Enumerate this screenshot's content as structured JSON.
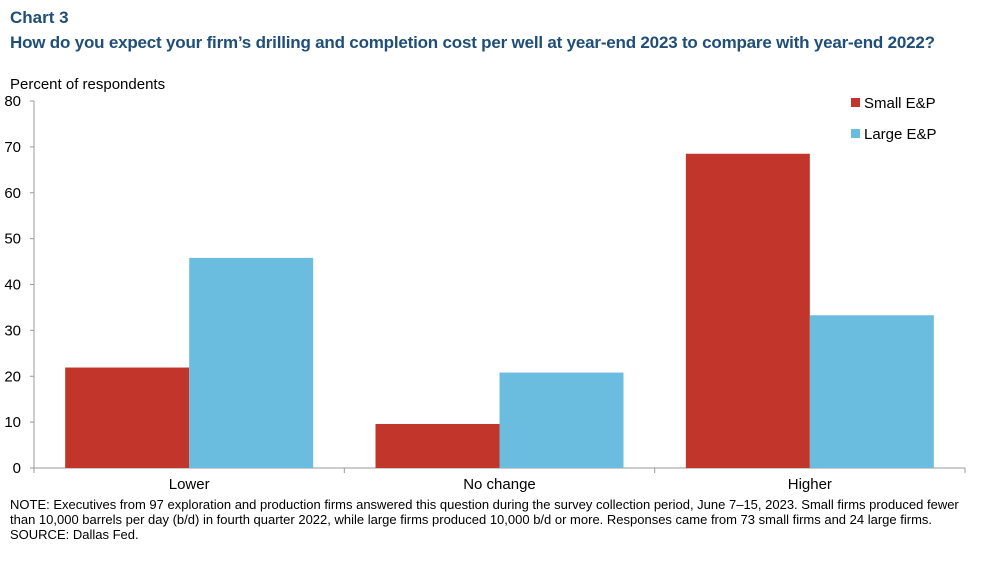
{
  "header": {
    "chart_number": "Chart 3",
    "title": "How do you expect your firm’s drilling and completion cost per well at year-end 2023 to compare with year-end 2022?"
  },
  "notes": {
    "note": "NOTE: Executives from 97 exploration and production firms answered this question during the survey collection period, June 7–15, 2023. Small firms produced fewer than 10,000 barrels per day (b/d) in fourth quarter 2022, while large firms produced 10,000 b/d or more. Responses came from 73 small firms and 24 large firms.",
    "source": "SOURCE: Dallas Fed."
  },
  "chart_data": {
    "type": "bar",
    "ylabel": "Percent of respondents",
    "categories": [
      "Lower",
      "No change",
      "Higher"
    ],
    "series": [
      {
        "name": "Small E&P",
        "color": "#c1352b",
        "values": [
          21.9,
          9.6,
          68.5
        ]
      },
      {
        "name": "Large E&P",
        "color": "#6bbde0",
        "values": [
          45.8,
          20.8,
          33.3
        ]
      }
    ],
    "ylim": [
      0,
      80
    ],
    "yticks": [
      0,
      10,
      20,
      30,
      40,
      50,
      60,
      70,
      80
    ],
    "grid": false,
    "legend": "top-right"
  }
}
